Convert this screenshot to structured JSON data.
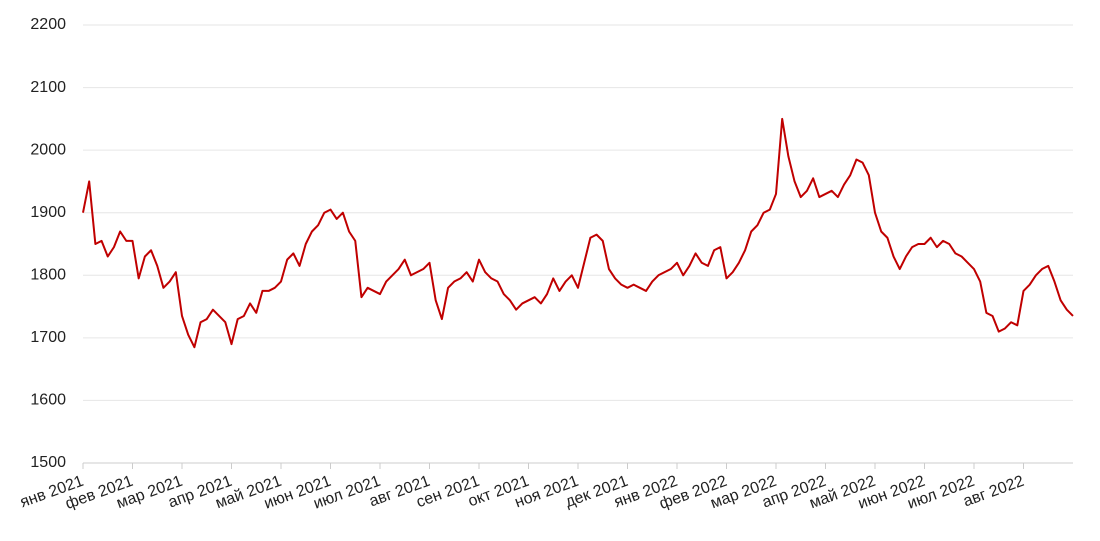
{
  "chart_data": {
    "type": "line",
    "categories": [
      "янв 2021",
      null,
      null,
      null,
      null,
      null,
      null,
      null,
      "фев 2021",
      null,
      null,
      null,
      null,
      null,
      null,
      null,
      "мар 2021",
      null,
      null,
      null,
      null,
      null,
      null,
      null,
      "апр 2021",
      null,
      null,
      null,
      null,
      null,
      null,
      null,
      "май 2021",
      null,
      null,
      null,
      null,
      null,
      null,
      null,
      "июн 2021",
      null,
      null,
      null,
      null,
      null,
      null,
      null,
      "июл 2021",
      null,
      null,
      null,
      null,
      null,
      null,
      null,
      "авг 2021",
      null,
      null,
      null,
      null,
      null,
      null,
      null,
      "сен 2021",
      null,
      null,
      null,
      null,
      null,
      null,
      null,
      "окт 2021",
      null,
      null,
      null,
      null,
      null,
      null,
      null,
      "ноя 2021",
      null,
      null,
      null,
      null,
      null,
      null,
      null,
      "дек 2021",
      null,
      null,
      null,
      null,
      null,
      null,
      null,
      "янв 2022",
      null,
      null,
      null,
      null,
      null,
      null,
      null,
      "фев 2022",
      null,
      null,
      null,
      null,
      null,
      null,
      null,
      "мар 2022",
      null,
      null,
      null,
      null,
      null,
      null,
      null,
      "апр 2022",
      null,
      null,
      null,
      null,
      null,
      null,
      null,
      "май 2022",
      null,
      null,
      null,
      null,
      null,
      null,
      null,
      "июн 2022",
      null,
      null,
      null,
      null,
      null,
      null,
      null,
      "июл 2022",
      null,
      null,
      null,
      null,
      null,
      null,
      null,
      "авг 2022",
      null,
      null,
      null,
      null,
      null,
      null,
      null,
      null
    ],
    "series": [
      {
        "color": "#c00000",
        "values": [
          1900,
          1950,
          1850,
          1855,
          1830,
          1845,
          1870,
          1855,
          1855,
          1795,
          1830,
          1840,
          1815,
          1780,
          1790,
          1805,
          1735,
          1705,
          1685,
          1725,
          1730,
          1745,
          1735,
          1725,
          1690,
          1730,
          1735,
          1755,
          1740,
          1775,
          1775,
          1780,
          1790,
          1825,
          1835,
          1815,
          1850,
          1870,
          1880,
          1900,
          1905,
          1890,
          1900,
          1870,
          1855,
          1765,
          1780,
          1775,
          1770,
          1790,
          1800,
          1810,
          1825,
          1800,
          1805,
          1810,
          1820,
          1760,
          1730,
          1780,
          1790,
          1795,
          1805,
          1790,
          1825,
          1805,
          1795,
          1790,
          1770,
          1760,
          1745,
          1755,
          1760,
          1765,
          1755,
          1770,
          1795,
          1775,
          1790,
          1800,
          1780,
          1820,
          1860,
          1865,
          1855,
          1810,
          1795,
          1785,
          1780,
          1785,
          1780,
          1775,
          1790,
          1800,
          1805,
          1810,
          1820,
          1800,
          1815,
          1835,
          1820,
          1815,
          1840,
          1845,
          1795,
          1805,
          1820,
          1840,
          1870,
          1880,
          1900,
          1905,
          1930,
          2050,
          1990,
          1950,
          1925,
          1935,
          1955,
          1925,
          1930,
          1935,
          1925,
          1945,
          1960,
          1985,
          1980,
          1960,
          1900,
          1870,
          1860,
          1830,
          1810,
          1830,
          1845,
          1850,
          1850,
          1860,
          1845,
          1855,
          1850,
          1835,
          1830,
          1820,
          1810,
          1790,
          1740,
          1735,
          1710,
          1715,
          1725,
          1720,
          1775,
          1785,
          1800,
          1810,
          1815,
          1790,
          1760,
          1745,
          1735
        ]
      }
    ],
    "ylim": [
      1500,
      2200
    ],
    "yticks": [
      1500,
      1600,
      1700,
      1800,
      1900,
      2000,
      2100,
      2200
    ],
    "grid": true
  }
}
